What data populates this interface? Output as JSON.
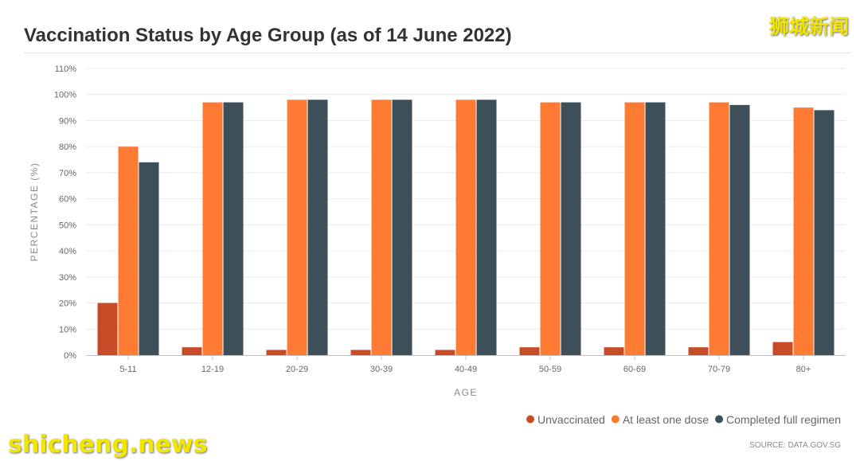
{
  "title": "Vaccination Status by Age Group (as of 14 June 2022)",
  "watermarks": {
    "top": "狮城新闻",
    "bottom": "shicheng.news"
  },
  "source": "SOURCE: DATA.GOV.SG",
  "colors": {
    "Unvaccinated": "#c84b28",
    "At least one dose": "#ff7b33",
    "Completed full regimen": "#3d5059",
    "grid": "#ebebeb",
    "axis": "#bfbfbf"
  },
  "chart_data": {
    "type": "bar",
    "title": "Vaccination Status by Age Group (as of 14 June 2022)",
    "xlabel": "AGE",
    "ylabel": "PERCENTAGE (%)",
    "ylim": [
      0,
      110
    ],
    "yticks": [
      0,
      10,
      20,
      30,
      40,
      50,
      60,
      70,
      80,
      90,
      100,
      110
    ],
    "ytick_labels": [
      "0%",
      "10%",
      "20%",
      "30%",
      "40%",
      "50%",
      "60%",
      "70%",
      "80%",
      "90%",
      "100%",
      "110%"
    ],
    "grid": true,
    "legend_position": "bottom-right",
    "categories": [
      "5-11",
      "12-19",
      "20-29",
      "30-39",
      "40-49",
      "50-59",
      "60-69",
      "70-79",
      "80+"
    ],
    "series": [
      {
        "name": "Unvaccinated",
        "values": [
          20,
          3,
          2,
          2,
          2,
          3,
          3,
          3,
          5
        ]
      },
      {
        "name": "At least one dose",
        "values": [
          80,
          97,
          98,
          98,
          98,
          97,
          97,
          97,
          95
        ]
      },
      {
        "name": "Completed full regimen",
        "values": [
          74,
          97,
          98,
          98,
          98,
          97,
          97,
          96,
          94
        ]
      }
    ]
  }
}
